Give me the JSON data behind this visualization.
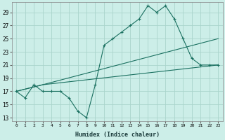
{
  "xlabel": "Humidex (Indice chaleur)",
  "background_color": "#cceee8",
  "grid_color": "#aad4cc",
  "line_color": "#1a7060",
  "x_ticks": [
    0,
    1,
    2,
    3,
    4,
    5,
    6,
    7,
    8,
    9,
    10,
    11,
    12,
    13,
    14,
    15,
    16,
    17,
    18,
    19,
    20,
    21,
    22,
    23
  ],
  "y_ticks": [
    13,
    15,
    17,
    19,
    21,
    23,
    25,
    27,
    29
  ],
  "xlim": [
    -0.5,
    23.5
  ],
  "ylim": [
    12.5,
    30.5
  ],
  "series1": {
    "x": [
      0,
      1,
      2,
      3,
      4,
      5,
      6,
      7,
      8,
      9,
      10,
      11,
      12,
      13,
      14,
      15,
      16,
      17,
      18,
      19,
      20,
      21,
      22,
      23
    ],
    "y": [
      17,
      16,
      18,
      17,
      17,
      17,
      16,
      14,
      13,
      18,
      24,
      25,
      26,
      27,
      28,
      30,
      29,
      30,
      28,
      25,
      22,
      21,
      21,
      21
    ]
  },
  "series2": {
    "x": [
      0,
      3,
      23
    ],
    "y": [
      17,
      18,
      25
    ]
  },
  "series3": {
    "x": [
      0,
      3,
      23
    ],
    "y": [
      17,
      18,
      21
    ]
  }
}
